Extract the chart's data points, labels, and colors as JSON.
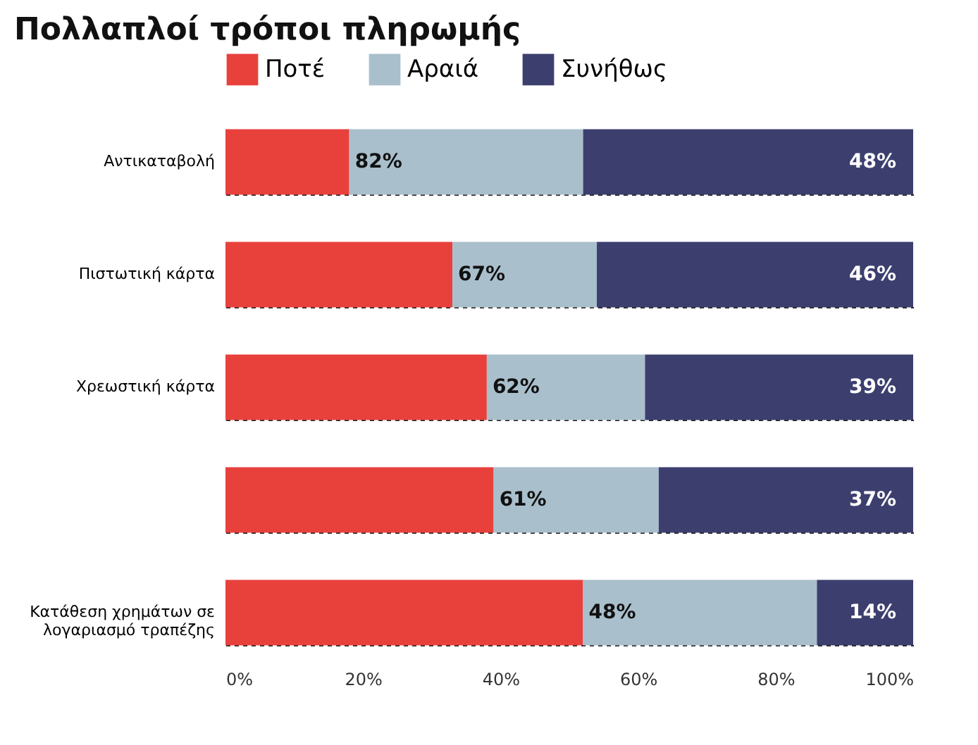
{
  "chart_data": {
    "type": "bar",
    "orientation": "horizontal",
    "stacked": true,
    "title": "Πολλαπλοί τρόποι πληρωμής",
    "categories": [
      "Αντικαταβολή",
      "Πιστωτική κάρτα",
      "Χρεωστική κάρτα",
      null,
      "Κατάθεση χρημάτων σε λογαριασμό τραπέζης"
    ],
    "series": [
      {
        "name": "Ποτέ",
        "color": "#e8413c",
        "values": [
          18,
          33,
          38,
          39,
          52
        ]
      },
      {
        "name": "Αραιά",
        "color": "#a9bfcc",
        "values": [
          34,
          21,
          23,
          24,
          34
        ]
      },
      {
        "name": "Συνήθως",
        "color": "#3c3f6e",
        "values": [
          48,
          46,
          39,
          37,
          14
        ],
        "value_labels": [
          "48%",
          "46%",
          "39%",
          "37%",
          "14%"
        ]
      }
    ],
    "xlim": [
      0,
      100
    ],
    "xticks": [
      {
        "value": 0,
        "label": "0%"
      },
      {
        "value": 20,
        "label": "20%"
      },
      {
        "value": 40,
        "label": "40%"
      },
      {
        "value": 60,
        "label": "60%"
      },
      {
        "value": 80,
        "label": "80%"
      },
      {
        "value": 100,
        "label": "100%"
      }
    ],
    "annotations": [
      {
        "text": "82%",
        "x": 18,
        "y": "Αντικαταβολή"
      },
      {
        "text": "67%",
        "x": 33,
        "y": "Πιστωτική κάρτα"
      },
      {
        "text": "62%",
        "x": 38,
        "y": "Χρεωστική κάρτα"
      },
      {
        "text": "61%",
        "x": 39
      },
      {
        "text": "48%",
        "x": 52,
        "y": "Κατάθεση χρημάτων σε λογαριασμό τραπέζης"
      }
    ],
    "grid": "y",
    "legend": "top"
  }
}
